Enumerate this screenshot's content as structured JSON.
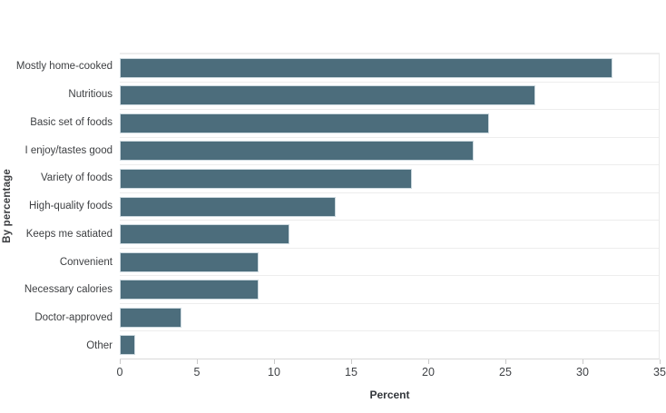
{
  "chart_data": {
    "type": "bar",
    "orientation": "horizontal",
    "title": "",
    "xlabel": "Percent",
    "ylabel": "By percentage",
    "categories": [
      "Mostly home-cooked",
      "Nutritious",
      "Basic set of foods",
      "I enjoy/tastes good",
      "Variety of foods",
      "High-quality foods",
      "Keeps me satiated",
      "Convenient",
      "Necessary calories",
      "Doctor-approved",
      "Other"
    ],
    "values": [
      32,
      27,
      24,
      23,
      19,
      14,
      11,
      9,
      9,
      4,
      1
    ],
    "xlim": [
      0,
      35
    ],
    "xticks": [
      0,
      5,
      10,
      15,
      20,
      25,
      30,
      35
    ],
    "grid": "horizontal row separators, no vertical gridlines",
    "legend_position": "none",
    "colors": {
      "bar_fill": "#4c6d7c",
      "bar_stroke": "#ccd9df",
      "row_gridline": "#ededed",
      "axis_line": "#d9d9d9",
      "tick_mark": "#c9c9c9",
      "text": "#3d3f42",
      "background": "#ffffff"
    }
  }
}
